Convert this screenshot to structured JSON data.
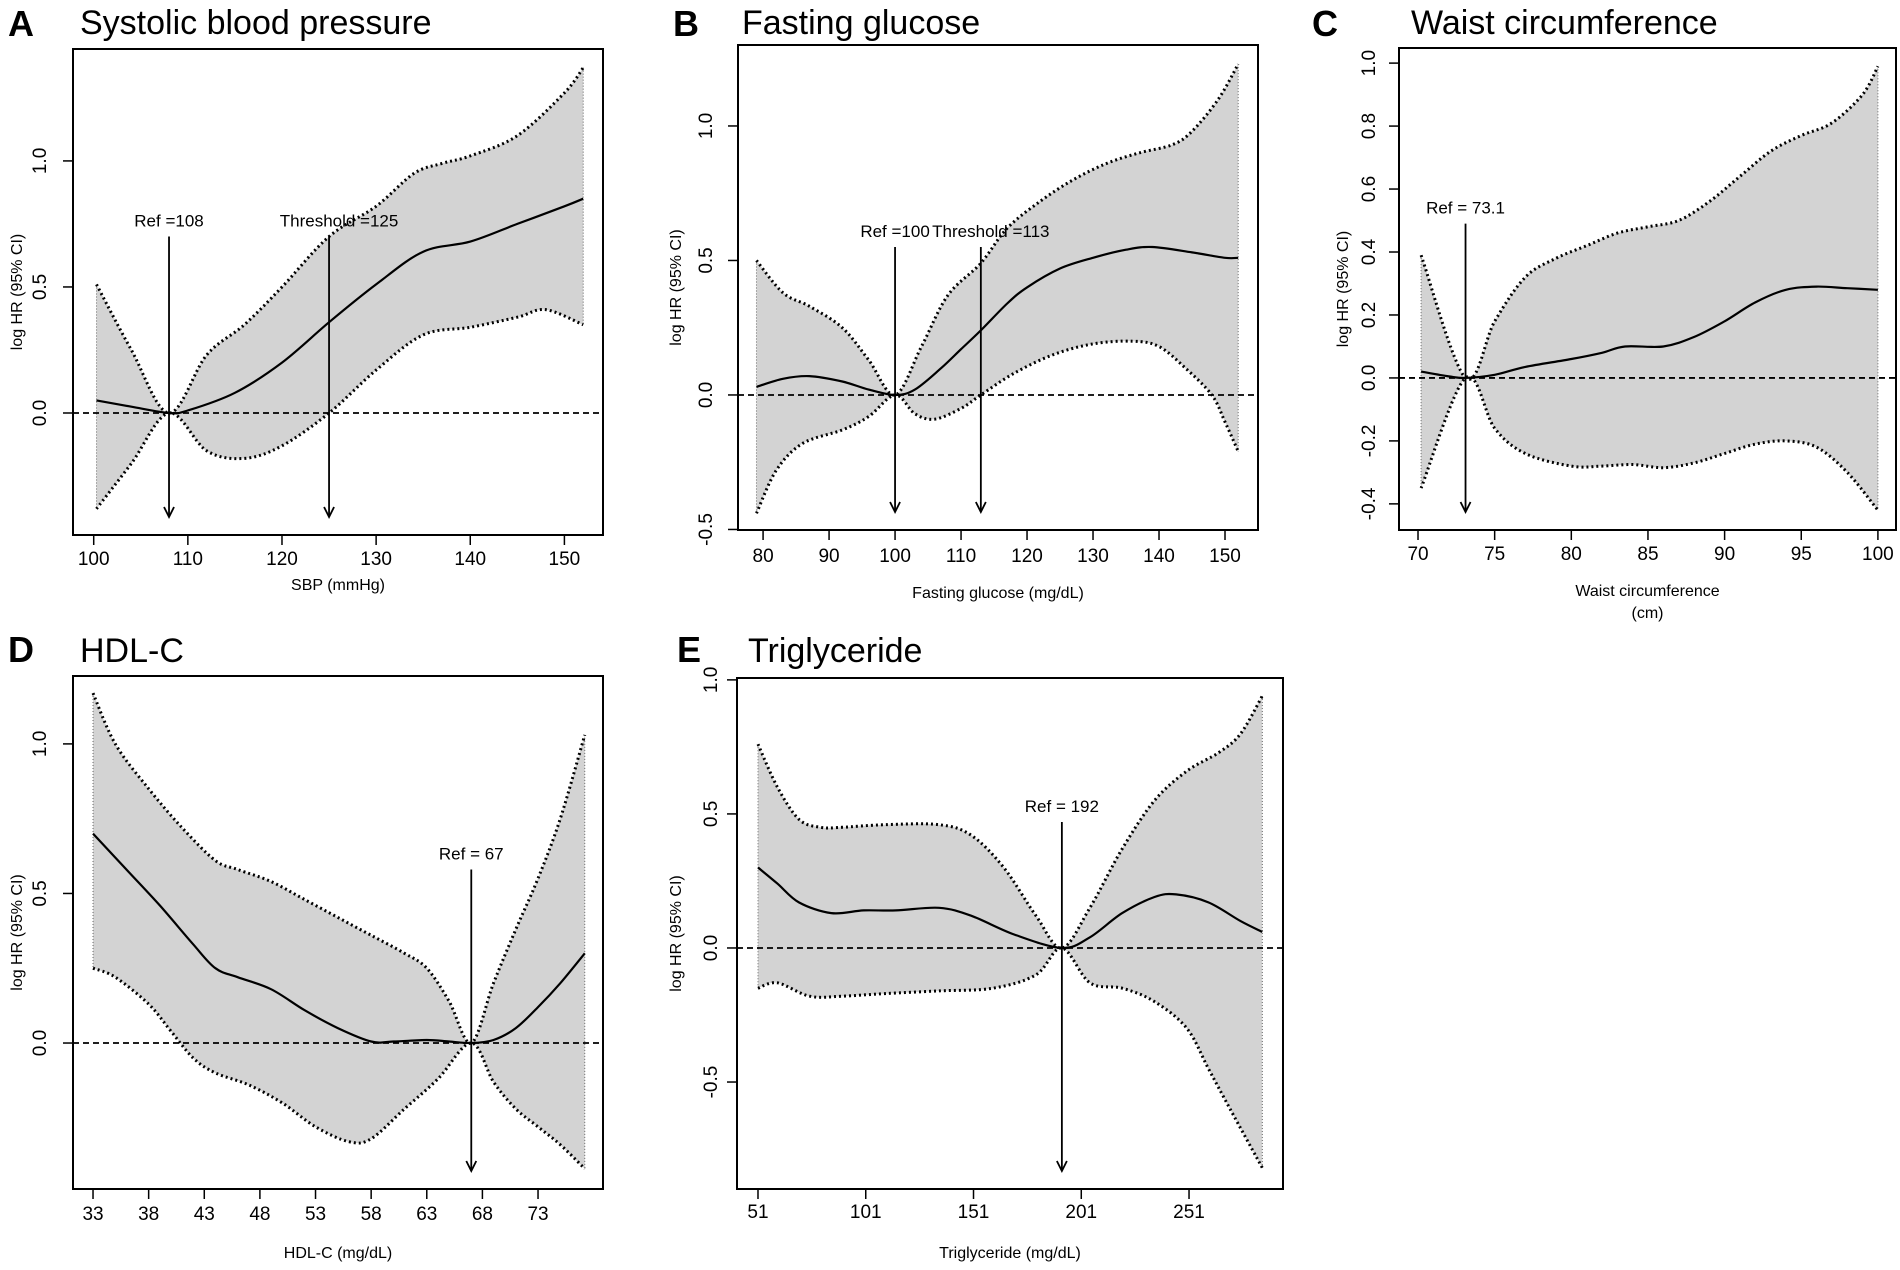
{
  "colors": {
    "band": "#d3d3d3",
    "line": "#000000",
    "background": "#ffffff"
  },
  "chart_data": [
    {
      "panel": "A",
      "type": "line",
      "title": "Systolic blood pressure",
      "xlabel": [
        "SBP (mmHg)"
      ],
      "ylabel": "log HR (95% CI)",
      "xticks": [
        100,
        110,
        120,
        130,
        140,
        150
      ],
      "yticks": [
        "0.0",
        "0.5",
        "1.0"
      ],
      "xlim": [
        97.8,
        154.1
      ],
      "ylim": [
        -0.484,
        1.444
      ],
      "reference_line": 0.0,
      "markers": [
        {
          "label": "Ref =108",
          "x": 108
        },
        {
          "label": "Threshold =125",
          "x": 125
        }
      ],
      "fit": [
        [
          100.3,
          0.05
        ],
        [
          104,
          0.025
        ],
        [
          108,
          0
        ],
        [
          110,
          0.01
        ],
        [
          115,
          0.08
        ],
        [
          120,
          0.2
        ],
        [
          125,
          0.36
        ],
        [
          130,
          0.51
        ],
        [
          135,
          0.64
        ],
        [
          140,
          0.68
        ],
        [
          145,
          0.75
        ],
        [
          150,
          0.82
        ],
        [
          152,
          0.85
        ]
      ],
      "upper": [
        [
          100.3,
          0.51
        ],
        [
          104,
          0.25
        ],
        [
          108,
          0
        ],
        [
          112,
          0.23
        ],
        [
          116,
          0.35
        ],
        [
          120,
          0.5
        ],
        [
          125,
          0.7
        ],
        [
          130,
          0.82
        ],
        [
          134,
          0.95
        ],
        [
          137,
          0.99
        ],
        [
          140,
          1.02
        ],
        [
          145,
          1.1
        ],
        [
          150,
          1.27
        ],
        [
          152,
          1.37
        ]
      ],
      "lower": [
        [
          100.3,
          -0.38
        ],
        [
          104,
          -0.2
        ],
        [
          108,
          0
        ],
        [
          112,
          -0.15
        ],
        [
          116,
          -0.18
        ],
        [
          120,
          -0.13
        ],
        [
          125,
          0.0
        ],
        [
          130,
          0.17
        ],
        [
          135,
          0.31
        ],
        [
          140,
          0.34
        ],
        [
          145,
          0.38
        ],
        [
          148,
          0.41
        ],
        [
          152,
          0.35
        ]
      ]
    },
    {
      "panel": "B",
      "type": "line",
      "title": "Fasting glucose",
      "xlabel": [
        "Fasting glucose (mg/dL)"
      ],
      "ylabel": "log HR (95% CI)",
      "xticks": [
        80,
        90,
        100,
        110,
        120,
        130,
        140,
        150
      ],
      "yticks": [
        "-0.5",
        "0.0",
        "0.5",
        "1.0"
      ],
      "xlim": [
        76.2,
        155.0
      ],
      "ylim": [
        -0.502,
        1.301
      ],
      "reference_line": 0.0,
      "markers": [
        {
          "label": "Ref =100",
          "x": 100
        },
        {
          "label": "Threshold =113",
          "x": 113
        }
      ],
      "fit": [
        [
          79,
          0.03
        ],
        [
          83,
          0.06
        ],
        [
          87,
          0.07
        ],
        [
          92,
          0.05
        ],
        [
          96,
          0.02
        ],
        [
          100,
          0
        ],
        [
          103,
          0.02
        ],
        [
          107,
          0.1
        ],
        [
          110,
          0.17
        ],
        [
          113,
          0.24
        ],
        [
          117,
          0.34
        ],
        [
          120,
          0.4
        ],
        [
          125,
          0.47
        ],
        [
          130,
          0.51
        ],
        [
          135,
          0.54
        ],
        [
          139,
          0.55
        ],
        [
          145,
          0.53
        ],
        [
          150,
          0.51
        ],
        [
          152,
          0.51
        ]
      ],
      "upper": [
        [
          79,
          0.5
        ],
        [
          83,
          0.38
        ],
        [
          87,
          0.33
        ],
        [
          92,
          0.25
        ],
        [
          96,
          0.13
        ],
        [
          100,
          0
        ],
        [
          104,
          0.18
        ],
        [
          108,
          0.37
        ],
        [
          113,
          0.49
        ],
        [
          117,
          0.62
        ],
        [
          122,
          0.72
        ],
        [
          127,
          0.8
        ],
        [
          132,
          0.86
        ],
        [
          137,
          0.9
        ],
        [
          142,
          0.93
        ],
        [
          145,
          0.98
        ],
        [
          149,
          1.1
        ],
        [
          152,
          1.23
        ]
      ],
      "lower": [
        [
          79,
          -0.44
        ],
        [
          82,
          -0.28
        ],
        [
          86,
          -0.18
        ],
        [
          92,
          -0.13
        ],
        [
          96,
          -0.08
        ],
        [
          100,
          0
        ],
        [
          103,
          -0.07
        ],
        [
          106,
          -0.09
        ],
        [
          110,
          -0.05
        ],
        [
          113,
          0
        ],
        [
          118,
          0.08
        ],
        [
          124,
          0.15
        ],
        [
          130,
          0.19
        ],
        [
          136,
          0.2
        ],
        [
          140,
          0.18
        ],
        [
          144,
          0.1
        ],
        [
          148,
          0
        ],
        [
          150,
          -0.1
        ],
        [
          152,
          -0.21
        ]
      ]
    },
    {
      "panel": "C",
      "type": "line",
      "title": "Waist circumference",
      "xlabel": [
        "Waist circumference",
        "(cm)"
      ],
      "ylabel": "log HR (95% CI)",
      "xticks": [
        70,
        75,
        80,
        85,
        90,
        95,
        100
      ],
      "yticks": [
        "-0.4",
        "-0.2",
        "0.0",
        "0.2",
        "0.4",
        "0.6",
        "0.8",
        "1.0"
      ],
      "xlim": [
        68.76,
        101.18
      ],
      "ylim": [
        -0.483,
        1.048
      ],
      "reference_line": 0.0,
      "markers": [
        {
          "label": "Ref = 73.1",
          "x": 73.1
        }
      ],
      "fit": [
        [
          70.2,
          0.02
        ],
        [
          72,
          0.005
        ],
        [
          73.1,
          0
        ],
        [
          75,
          0.01
        ],
        [
          77,
          0.035
        ],
        [
          80,
          0.06
        ],
        [
          82,
          0.08
        ],
        [
          83.5,
          0.1
        ],
        [
          86,
          0.1
        ],
        [
          88,
          0.13
        ],
        [
          90,
          0.18
        ],
        [
          92,
          0.24
        ],
        [
          94,
          0.28
        ],
        [
          96,
          0.29
        ],
        [
          98,
          0.285
        ],
        [
          100,
          0.28
        ]
      ],
      "upper": [
        [
          70.2,
          0.39
        ],
        [
          73.1,
          0
        ],
        [
          75,
          0.18
        ],
        [
          77,
          0.32
        ],
        [
          79,
          0.38
        ],
        [
          81,
          0.42
        ],
        [
          83,
          0.46
        ],
        [
          85,
          0.48
        ],
        [
          87,
          0.5
        ],
        [
          89,
          0.56
        ],
        [
          91,
          0.64
        ],
        [
          93,
          0.72
        ],
        [
          95,
          0.77
        ],
        [
          97,
          0.81
        ],
        [
          99,
          0.9
        ],
        [
          100,
          0.99
        ]
      ],
      "lower": [
        [
          70.2,
          -0.35
        ],
        [
          73.1,
          0
        ],
        [
          75,
          -0.16
        ],
        [
          77,
          -0.24
        ],
        [
          80,
          -0.28
        ],
        [
          82,
          -0.28
        ],
        [
          84,
          -0.275
        ],
        [
          86,
          -0.285
        ],
        [
          88,
          -0.27
        ],
        [
          90,
          -0.24
        ],
        [
          92,
          -0.21
        ],
        [
          94,
          -0.2
        ],
        [
          96,
          -0.22
        ],
        [
          98,
          -0.3
        ],
        [
          100,
          -0.42
        ]
      ]
    },
    {
      "panel": "D",
      "type": "line",
      "title": "HDL-C",
      "xlabel": [
        "HDL-C (mg/dL)"
      ],
      "ylabel": "log HR (95% CI)",
      "xticks": [
        33,
        38,
        43,
        48,
        53,
        58,
        63,
        68,
        73
      ],
      "yticks": [
        "0.0",
        "0.5",
        "1.0"
      ],
      "xlim": [
        31.2,
        78.84
      ],
      "ylim": [
        -0.488,
        1.227
      ],
      "reference_line": 0.0,
      "markers": [
        {
          "label": "Ref = 67",
          "x": 67
        }
      ],
      "fit": [
        [
          33,
          0.7
        ],
        [
          36,
          0.58
        ],
        [
          39,
          0.46
        ],
        [
          42,
          0.33
        ],
        [
          44,
          0.25
        ],
        [
          46,
          0.22
        ],
        [
          49,
          0.18
        ],
        [
          52,
          0.11
        ],
        [
          55,
          0.05
        ],
        [
          58,
          0.005
        ],
        [
          60,
          0.005
        ],
        [
          63,
          0.01
        ],
        [
          65,
          0.005
        ],
        [
          67,
          0
        ],
        [
          69,
          0.01
        ],
        [
          71,
          0.05
        ],
        [
          73,
          0.12
        ],
        [
          75,
          0.2
        ],
        [
          77.2,
          0.3
        ]
      ],
      "upper": [
        [
          33,
          1.17
        ],
        [
          35,
          1.0
        ],
        [
          38,
          0.85
        ],
        [
          41,
          0.72
        ],
        [
          44,
          0.61
        ],
        [
          46,
          0.58
        ],
        [
          49,
          0.54
        ],
        [
          52,
          0.48
        ],
        [
          55,
          0.42
        ],
        [
          58,
          0.36
        ],
        [
          61,
          0.3
        ],
        [
          63,
          0.25
        ],
        [
          65,
          0.14
        ],
        [
          67,
          0
        ],
        [
          69,
          0.2
        ],
        [
          71,
          0.38
        ],
        [
          73,
          0.55
        ],
        [
          75,
          0.75
        ],
        [
          77.2,
          1.03
        ]
      ],
      "lower": [
        [
          33,
          0.25
        ],
        [
          35,
          0.22
        ],
        [
          38,
          0.13
        ],
        [
          40,
          0.04
        ],
        [
          42,
          -0.05
        ],
        [
          44,
          -0.1
        ],
        [
          47,
          -0.14
        ],
        [
          50,
          -0.2
        ],
        [
          53,
          -0.28
        ],
        [
          56,
          -0.33
        ],
        [
          58,
          -0.32
        ],
        [
          61,
          -0.22
        ],
        [
          64,
          -0.12
        ],
        [
          67,
          0
        ],
        [
          69,
          -0.13
        ],
        [
          71,
          -0.22
        ],
        [
          73,
          -0.28
        ],
        [
          75,
          -0.34
        ],
        [
          77.2,
          -0.42
        ]
      ]
    },
    {
      "panel": "E",
      "type": "line",
      "title": "Triglyceride",
      "xlabel": [
        "Triglyceride (mg/dL)"
      ],
      "ylabel": "log HR (95% CI)",
      "xticks": [
        51,
        101,
        151,
        201,
        251
      ],
      "yticks": [
        "-0.5",
        "0.0",
        "0.5",
        "1.0"
      ],
      "xlim": [
        41.26,
        294.6
      ],
      "ylim": [
        -0.899,
        1.007
      ],
      "reference_line": 0.0,
      "markers": [
        {
          "label": "Ref = 192",
          "x": 192
        }
      ],
      "fit": [
        [
          51,
          0.3
        ],
        [
          60,
          0.24
        ],
        [
          70,
          0.17
        ],
        [
          85,
          0.13
        ],
        [
          100,
          0.14
        ],
        [
          115,
          0.14
        ],
        [
          135,
          0.15
        ],
        [
          150,
          0.12
        ],
        [
          170,
          0.05
        ],
        [
          192,
          0
        ],
        [
          205,
          0.04
        ],
        [
          220,
          0.13
        ],
        [
          235,
          0.19
        ],
        [
          245,
          0.2
        ],
        [
          260,
          0.17
        ],
        [
          275,
          0.1
        ],
        [
          285,
          0.06
        ]
      ],
      "upper": [
        [
          51,
          0.76
        ],
        [
          60,
          0.6
        ],
        [
          70,
          0.48
        ],
        [
          80,
          0.45
        ],
        [
          90,
          0.45
        ],
        [
          110,
          0.46
        ],
        [
          135,
          0.46
        ],
        [
          150,
          0.42
        ],
        [
          165,
          0.3
        ],
        [
          180,
          0.12
        ],
        [
          192,
          0
        ],
        [
          205,
          0.15
        ],
        [
          220,
          0.37
        ],
        [
          235,
          0.55
        ],
        [
          250,
          0.66
        ],
        [
          265,
          0.73
        ],
        [
          275,
          0.8
        ],
        [
          285,
          0.94
        ]
      ],
      "lower": [
        [
          51,
          -0.15
        ],
        [
          60,
          -0.13
        ],
        [
          75,
          -0.18
        ],
        [
          90,
          -0.18
        ],
        [
          110,
          -0.17
        ],
        [
          135,
          -0.16
        ],
        [
          160,
          -0.15
        ],
        [
          180,
          -0.1
        ],
        [
          192,
          0
        ],
        [
          205,
          -0.13
        ],
        [
          220,
          -0.15
        ],
        [
          235,
          -0.2
        ],
        [
          250,
          -0.3
        ],
        [
          260,
          -0.45
        ],
        [
          270,
          -0.6
        ],
        [
          285,
          -0.82
        ]
      ]
    }
  ]
}
